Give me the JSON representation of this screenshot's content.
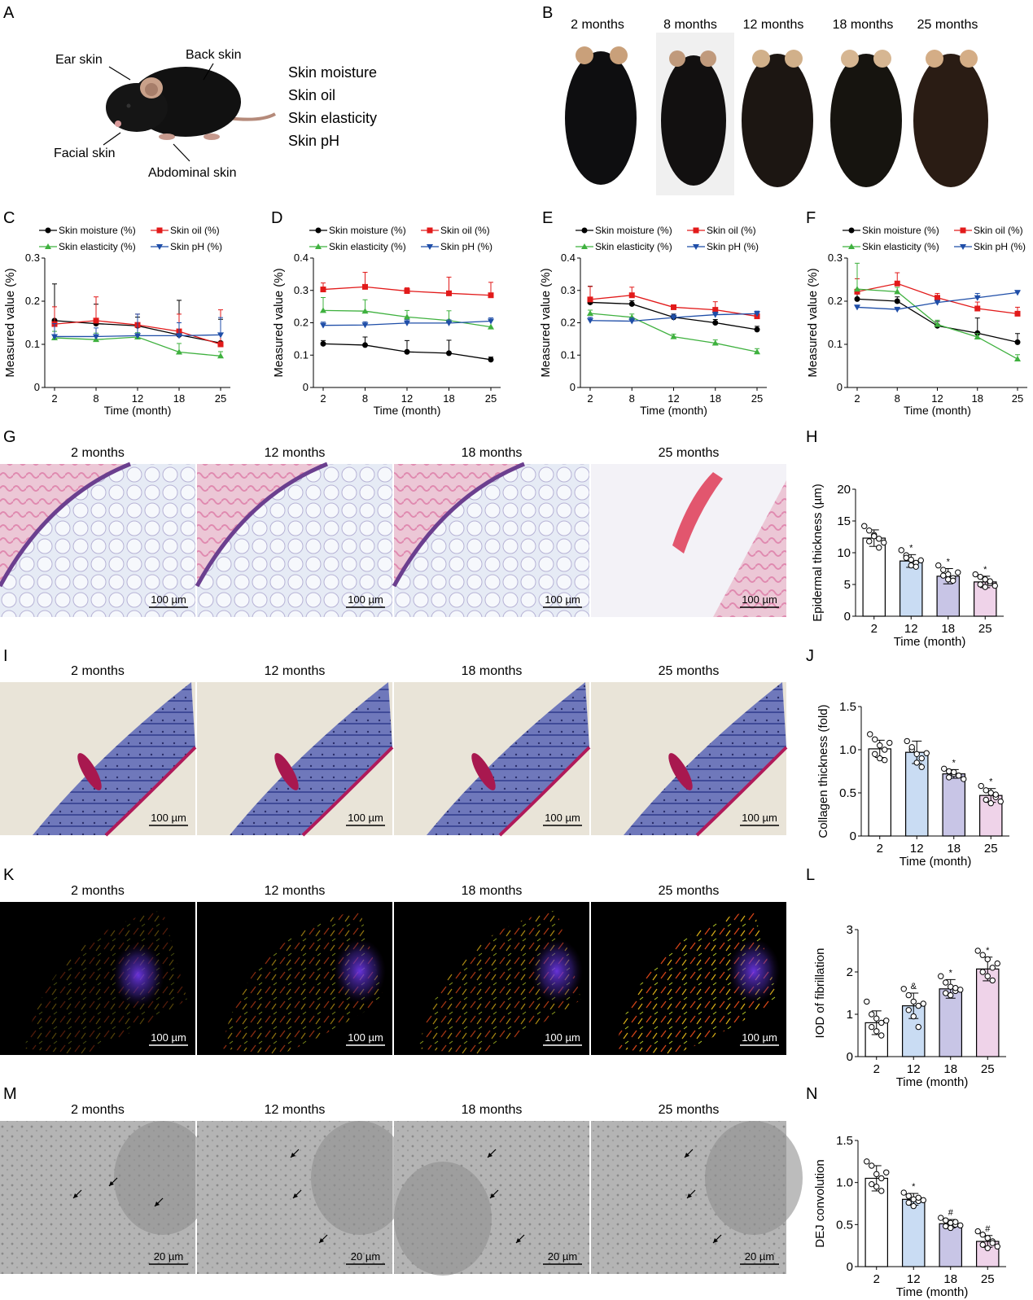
{
  "panel_letters": [
    "A",
    "B",
    "C",
    "D",
    "E",
    "F",
    "G",
    "H",
    "I",
    "J",
    "K",
    "L",
    "M",
    "N"
  ],
  "panel_a": {
    "labels": [
      "Ear skin",
      "Back skin",
      "Facial skin",
      "Abdominal skin"
    ],
    "measures": [
      "Skin moisture",
      "Skin oil",
      "Skin elasticity",
      "Skin pH"
    ]
  },
  "panel_b": {
    "ages": [
      "2 months",
      "8 months",
      "12 months",
      "18 months",
      "25 months"
    ]
  },
  "micro_rows": {
    "ages": [
      "2 months",
      "12 months",
      "18 months",
      "25 months"
    ],
    "scale_100": "100 µm",
    "scale_20": "20 µm"
  },
  "colors": {
    "moisture": "#000000",
    "oil": "#e21a1a",
    "elasticity": "#3fb13f",
    "ph": "#1f4ea8",
    "bar_2": "#ffffff",
    "bar_12": "#c9dcf3",
    "bar_18": "#c8c5e6",
    "bar_25": "#efd3e9"
  },
  "chart_data": [
    {
      "panel": "C",
      "type": "line",
      "legend": [
        "Skin moisture (%)",
        "Skin oil  (%)",
        "Skin elasticity (%)",
        "Skin pH (%)"
      ],
      "x": [
        2,
        8,
        12,
        18,
        25
      ],
      "x_ticks": [
        "2",
        "8",
        "12",
        "18",
        "25"
      ],
      "xlabel": "Time (month)",
      "ylabel": "Measured value (%)",
      "ylim": [
        0,
        0.3
      ],
      "y_ticks": [
        "0",
        "0.1",
        "0.2",
        "0.3"
      ],
      "series": [
        {
          "name": "Skin moisture (%)",
          "values": [
            0.155,
            0.148,
            0.143,
            0.122,
            0.103
          ],
          "err": [
            0.085,
            0.045,
            0.02,
            0.08,
            0.055
          ]
        },
        {
          "name": "Skin oil  (%)",
          "values": [
            0.147,
            0.155,
            0.145,
            0.13,
            0.1
          ],
          "err": [
            0.04,
            0.055,
            0.025,
            0.04,
            0.08
          ]
        },
        {
          "name": "Skin elasticity (%)",
          "values": [
            0.115,
            0.111,
            0.117,
            0.082,
            0.073
          ],
          "err": [
            0.015,
            0.015,
            0.01,
            0.02,
            0.01
          ]
        },
        {
          "name": "Skin pH (%)",
          "values": [
            0.118,
            0.118,
            0.12,
            0.12,
            0.122
          ],
          "err": [
            0.03,
            0.02,
            0.05,
            0.03,
            0.04
          ]
        }
      ]
    },
    {
      "panel": "D",
      "type": "line",
      "legend": [
        "Skin moisture (%)",
        "Skin oil  (%)",
        "Skin elasticity (%)",
        "Skin pH (%)"
      ],
      "x": [
        2,
        8,
        12,
        18,
        25
      ],
      "x_ticks": [
        "2",
        "8",
        "12",
        "18",
        "25"
      ],
      "xlabel": "Time (month)",
      "ylabel": "Measured value (%)",
      "ylim": [
        0,
        0.4
      ],
      "y_ticks": [
        "0",
        "0.1",
        "0.2",
        "0.3",
        "0.4"
      ],
      "series": [
        {
          "name": "Skin moisture (%)",
          "values": [
            0.135,
            0.131,
            0.11,
            0.106,
            0.086
          ],
          "err": [
            0.01,
            0.025,
            0.035,
            0.04,
            0.008
          ]
        },
        {
          "name": "Skin oil  (%)",
          "values": [
            0.303,
            0.311,
            0.298,
            0.291,
            0.285
          ],
          "err": [
            0.02,
            0.045,
            0.01,
            0.05,
            0.04
          ]
        },
        {
          "name": "Skin elasticity (%)",
          "values": [
            0.238,
            0.236,
            0.218,
            0.207,
            0.187
          ],
          "err": [
            0.04,
            0.035,
            0.02,
            0.03,
            0.02
          ]
        },
        {
          "name": "Skin pH (%)",
          "values": [
            0.192,
            0.193,
            0.199,
            0.199,
            0.205
          ],
          "err": [
            0.01,
            0.01,
            0.01,
            0.01,
            0.01
          ]
        }
      ]
    },
    {
      "panel": "E",
      "type": "line",
      "legend": [
        "Skin moisture (%)",
        "Skin oil  (%)",
        "Skin elasticity (%)",
        "Skin pH (%)"
      ],
      "x": [
        2,
        8,
        12,
        18,
        25
      ],
      "x_ticks": [
        "2",
        "8",
        "12",
        "18",
        "25"
      ],
      "xlabel": "Time (month)",
      "ylabel": "Measured value (%)",
      "ylim": [
        0,
        0.4
      ],
      "y_ticks": [
        "0",
        "0.1",
        "0.2",
        "0.3",
        "0.4"
      ],
      "series": [
        {
          "name": "Skin moisture (%)",
          "values": [
            0.263,
            0.258,
            0.217,
            0.2,
            0.179
          ],
          "err": [
            0.05,
            0.01,
            0.01,
            0.01,
            0.01
          ]
        },
        {
          "name": "Skin oil  (%)",
          "values": [
            0.272,
            0.285,
            0.248,
            0.24,
            0.22
          ],
          "err": [
            0.04,
            0.025,
            0.005,
            0.025,
            0.005
          ]
        },
        {
          "name": "Skin elasticity (%)",
          "values": [
            0.229,
            0.217,
            0.157,
            0.137,
            0.11
          ],
          "err": [
            0.01,
            0.01,
            0.008,
            0.01,
            0.01
          ]
        },
        {
          "name": "Skin pH (%)",
          "values": [
            0.207,
            0.205,
            0.216,
            0.225,
            0.228
          ],
          "err": [
            0.01,
            0.01,
            0.01,
            0.008,
            0.008
          ]
        }
      ]
    },
    {
      "panel": "F",
      "type": "line",
      "legend": [
        "Skin moisture (%)",
        "Skin oil  (%)",
        "Skin elasticity (%)",
        "Skin pH (%)"
      ],
      "x": [
        2,
        8,
        12,
        18,
        25
      ],
      "x_ticks": [
        "2",
        "8",
        "12",
        "18",
        "25"
      ],
      "xlabel": "Time (month)",
      "ylabel": "Measured value (%)",
      "ylim": [
        0,
        0.3
      ],
      "y_ticks": [
        "0",
        "0.1",
        "0.2",
        "0.3"
      ],
      "series": [
        {
          "name": "Skin moisture (%)",
          "values": [
            0.205,
            0.2,
            0.143,
            0.126,
            0.105
          ],
          "err": [
            0.015,
            0.01,
            0.01,
            0.035,
            0.02
          ]
        },
        {
          "name": "Skin oil  (%)",
          "values": [
            0.222,
            0.241,
            0.208,
            0.183,
            0.171
          ],
          "err": [
            0.03,
            0.025,
            0.01,
            0.015,
            0.015
          ]
        },
        {
          "name": "Skin elasticity (%)",
          "values": [
            0.228,
            0.222,
            0.146,
            0.117,
            0.066
          ],
          "err": [
            0.06,
            0.01,
            0.01,
            0.008,
            0.01
          ]
        },
        {
          "name": "Skin pH (%)",
          "values": [
            0.186,
            0.181,
            0.197,
            0.208,
            0.22
          ],
          "err": [
            0.005,
            0.005,
            0.005,
            0.01,
            0.005
          ]
        }
      ]
    },
    {
      "panel": "H",
      "type": "bar",
      "categories": [
        "2",
        "12",
        "18",
        "25"
      ],
      "values": [
        12.3,
        8.7,
        6.3,
        5.4
      ],
      "err": [
        1.3,
        1.0,
        1.2,
        0.9
      ],
      "points": [
        [
          14.2,
          13.5,
          12.8,
          12.2,
          11.8,
          12.6,
          10.8,
          11.6
        ],
        [
          10.4,
          9.6,
          8.9,
          8.4,
          9.2,
          8.0,
          7.8,
          8.8
        ],
        [
          8.0,
          7.3,
          6.6,
          6.0,
          6.4,
          5.8,
          5.6,
          6.9
        ],
        [
          6.6,
          6.2,
          5.8,
          5.2,
          5.0,
          4.6,
          5.5,
          4.8
        ]
      ],
      "markers": [
        "",
        "*",
        "*",
        "*"
      ],
      "xlabel": "Time (month)",
      "ylabel": "Epidermal thickness (µm)",
      "ylim": [
        0,
        20
      ],
      "y_ticks": [
        "0",
        "5",
        "10",
        "15",
        "20"
      ]
    },
    {
      "panel": "J",
      "type": "bar",
      "categories": [
        "2",
        "12",
        "18",
        "25"
      ],
      "values": [
        1.01,
        0.97,
        0.72,
        0.47
      ],
      "err": [
        0.1,
        0.13,
        0.05,
        0.08
      ],
      "points": [
        [
          1.18,
          1.12,
          1.05,
          1.0,
          0.95,
          0.9,
          0.88,
          1.08
        ],
        [
          1.1,
          1.0,
          0.95,
          0.9,
          1.03,
          0.85,
          0.8,
          0.96
        ],
        [
          0.78,
          0.75,
          0.72,
          0.7,
          0.68,
          0.74,
          0.7,
          0.66
        ],
        [
          0.58,
          0.53,
          0.5,
          0.45,
          0.42,
          0.38,
          0.48,
          0.4
        ]
      ],
      "markers": [
        "",
        "",
        "*",
        "*"
      ],
      "xlabel": "Time (month)",
      "ylabel": "Collagen thickness (fold)",
      "ylim": [
        0,
        1.5
      ],
      "y_ticks": [
        "0",
        "0.5",
        "1.0",
        "1.5"
      ]
    },
    {
      "panel": "L",
      "type": "bar",
      "categories": [
        "2",
        "12",
        "18",
        "25"
      ],
      "values": [
        0.8,
        1.2,
        1.6,
        2.07
      ],
      "err": [
        0.28,
        0.3,
        0.22,
        0.28
      ],
      "points": [
        [
          1.3,
          1.0,
          0.9,
          0.8,
          0.7,
          0.6,
          0.5,
          0.85
        ],
        [
          1.6,
          1.45,
          1.3,
          1.2,
          1.1,
          0.95,
          0.7,
          1.25
        ],
        [
          1.9,
          1.75,
          1.65,
          1.55,
          1.5,
          1.45,
          1.62,
          1.58
        ],
        [
          2.5,
          2.4,
          2.3,
          2.1,
          2.0,
          1.9,
          1.8,
          2.2
        ]
      ],
      "markers": [
        "",
        "&",
        "*",
        "*"
      ],
      "xlabel": "Time (month)",
      "ylabel": "IOD of fibrillation",
      "ylim": [
        0,
        3
      ],
      "y_ticks": [
        "0",
        "1",
        "2",
        "3"
      ]
    },
    {
      "panel": "N",
      "type": "bar",
      "categories": [
        "2",
        "12",
        "18",
        "25"
      ],
      "values": [
        1.05,
        0.8,
        0.51,
        0.3
      ],
      "err": [
        0.15,
        0.07,
        0.05,
        0.07
      ],
      "points": [
        [
          1.25,
          1.2,
          1.1,
          1.05,
          0.98,
          0.95,
          0.9,
          1.12
        ],
        [
          0.88,
          0.84,
          0.8,
          0.78,
          0.76,
          0.72,
          0.82,
          0.79
        ],
        [
          0.58,
          0.55,
          0.52,
          0.5,
          0.48,
          0.46,
          0.53,
          0.49
        ],
        [
          0.42,
          0.38,
          0.34,
          0.3,
          0.26,
          0.22,
          0.28,
          0.24
        ]
      ],
      "markers": [
        "",
        "*",
        "#",
        "#"
      ],
      "xlabel": "Time (month)",
      "ylabel": "DEJ convolution",
      "ylim": [
        0,
        1.5
      ],
      "y_ticks": [
        "0",
        "0.5",
        "1.0",
        "1.5"
      ]
    }
  ]
}
